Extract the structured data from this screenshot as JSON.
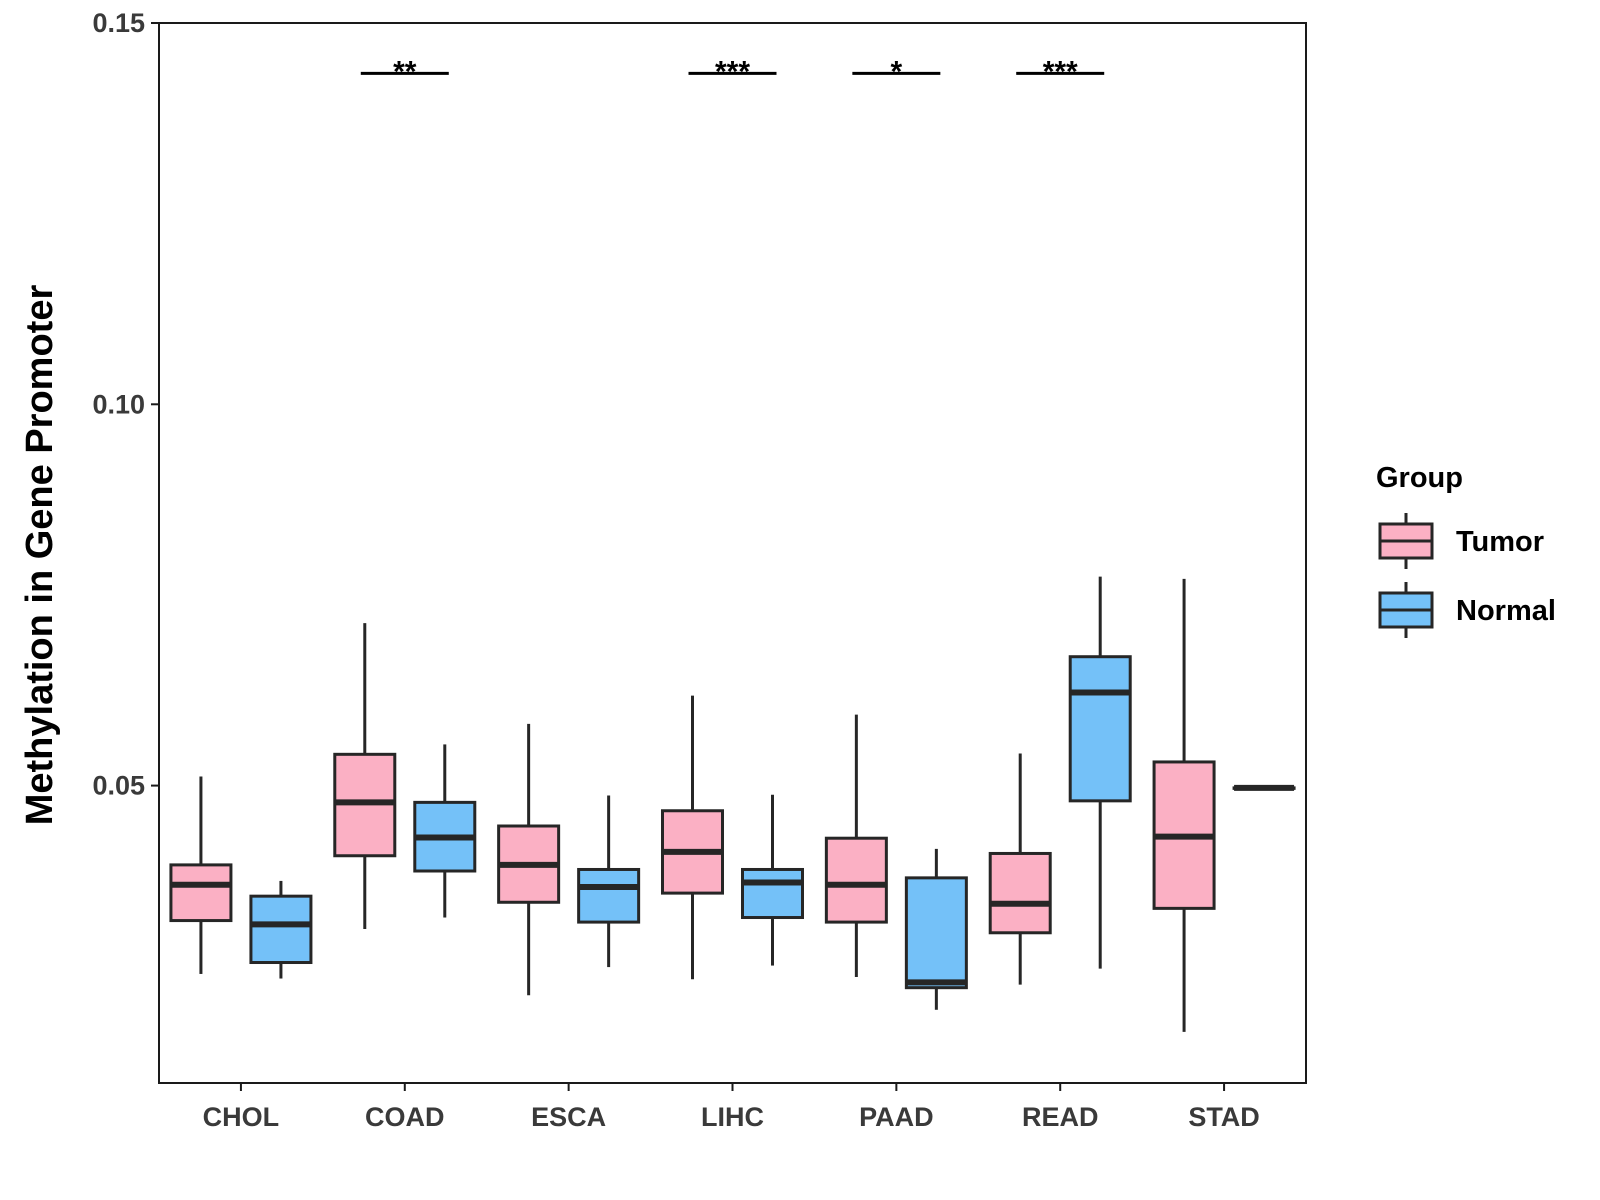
{
  "chart_data": {
    "type": "boxplot",
    "title": "",
    "xlabel": "",
    "ylabel": "Methylation in Gene Promoter",
    "ylim": [
      0.011,
      0.15
    ],
    "yticks": [
      0.05,
      0.1,
      0.15
    ],
    "ytick_labels": [
      "0.05",
      "0.10",
      "0.15"
    ],
    "categories": [
      "CHOL",
      "COAD",
      "ESCA",
      "LIHC",
      "PAAD",
      "READ",
      "STAD"
    ],
    "legend": {
      "title": "Group",
      "placement": "right",
      "entries": [
        {
          "name": "Tumor",
          "color": "#fbb0c4"
        },
        {
          "name": "Normal",
          "color": "#74c1f8"
        }
      ]
    },
    "series": [
      {
        "name": "Tumor",
        "color": "#fbb0c4",
        "boxes": [
          {
            "category": "CHOL",
            "min": 0.0253,
            "q1": 0.0323,
            "median": 0.037,
            "q3": 0.0396,
            "max": 0.0512
          },
          {
            "category": "COAD",
            "min": 0.0312,
            "q1": 0.0408,
            "median": 0.0478,
            "q3": 0.0541,
            "max": 0.0713
          },
          {
            "category": "ESCA",
            "min": 0.0225,
            "q1": 0.0347,
            "median": 0.0396,
            "q3": 0.0447,
            "max": 0.0581
          },
          {
            "category": "LIHC",
            "min": 0.0246,
            "q1": 0.0359,
            "median": 0.0413,
            "q3": 0.0467,
            "max": 0.0618
          },
          {
            "category": "PAAD",
            "min": 0.0249,
            "q1": 0.0321,
            "median": 0.037,
            "q3": 0.0431,
            "max": 0.0593
          },
          {
            "category": "READ",
            "min": 0.0239,
            "q1": 0.0307,
            "median": 0.0345,
            "q3": 0.0411,
            "max": 0.0542
          },
          {
            "category": "STAD",
            "min": 0.0177,
            "q1": 0.0339,
            "median": 0.0433,
            "q3": 0.0531,
            "max": 0.0771
          }
        ]
      },
      {
        "name": "Normal",
        "color": "#74c1f8",
        "boxes": [
          {
            "category": "CHOL",
            "min": 0.0247,
            "q1": 0.0268,
            "median": 0.0318,
            "q3": 0.0355,
            "max": 0.0375
          },
          {
            "category": "COAD",
            "min": 0.0327,
            "q1": 0.0388,
            "median": 0.0432,
            "q3": 0.0478,
            "max": 0.0554
          },
          {
            "category": "ESCA",
            "min": 0.0262,
            "q1": 0.0321,
            "median": 0.0367,
            "q3": 0.039,
            "max": 0.0487
          },
          {
            "category": "LIHC",
            "min": 0.0264,
            "q1": 0.0327,
            "median": 0.0373,
            "q3": 0.039,
            "max": 0.0488
          },
          {
            "category": "PAAD",
            "min": 0.0206,
            "q1": 0.0235,
            "median": 0.0242,
            "q3": 0.0379,
            "max": 0.0417
          },
          {
            "category": "READ",
            "min": 0.026,
            "q1": 0.048,
            "median": 0.0622,
            "q3": 0.0669,
            "max": 0.0774
          },
          {
            "category": "STAD",
            "min": 0.0497,
            "q1": 0.0497,
            "median": 0.0497,
            "q3": 0.0497,
            "max": 0.0497
          }
        ]
      }
    ],
    "significance": [
      {
        "category": "COAD",
        "label": "**",
        "y": 0.1434
      },
      {
        "category": "LIHC",
        "label": "***",
        "y": 0.1434
      },
      {
        "category": "PAAD",
        "label": "*",
        "y": 0.1434
      },
      {
        "category": "READ",
        "label": "***",
        "y": 0.1434
      }
    ]
  }
}
